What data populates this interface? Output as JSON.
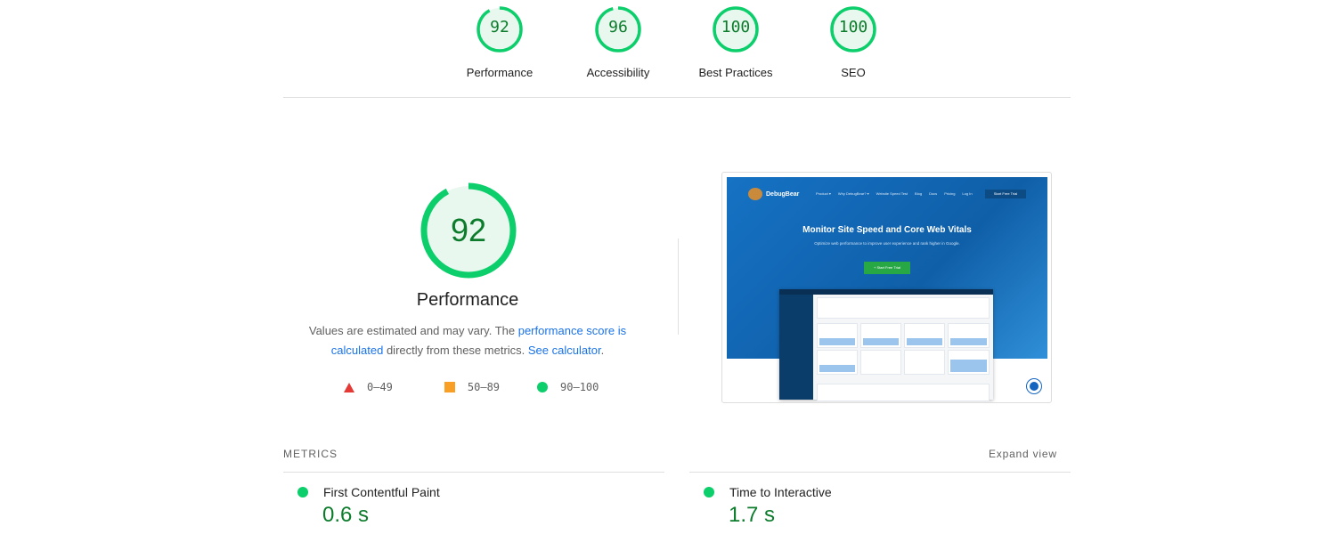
{
  "gauges": [
    {
      "label": "Performance",
      "score": 92
    },
    {
      "label": "Accessibility",
      "score": 96
    },
    {
      "label": "Best Practices",
      "score": 100
    },
    {
      "label": "SEO",
      "score": 100
    }
  ],
  "main": {
    "score": 92,
    "title": "Performance",
    "desc_pre": "Values are estimated and may vary. The ",
    "desc_link1": "performance score is calculated",
    "desc_mid": " directly from these metrics. ",
    "desc_link2": "See calculator",
    "desc_post": ".",
    "legend": [
      {
        "icon": "triangle-icon",
        "range": "0–49",
        "color": "#e53935"
      },
      {
        "icon": "square-icon",
        "range": "50–89",
        "color": "#fa9f25"
      },
      {
        "icon": "circle-icon",
        "range": "90–100",
        "color": "#0cce6b"
      }
    ]
  },
  "screenshot": {
    "brand": "DebugBear",
    "nav": [
      "Product ▾",
      "Why DebugBear? ▾",
      "Website Speed Test",
      "Blog",
      "Docs",
      "Pricing",
      "Log In"
    ],
    "nav_cta": "Start Free Trial",
    "headline": "Monitor Site Speed and Core Web Vitals",
    "subheadline": "Optimize web performance to improve user experience and rank higher in Google.",
    "cta": "+ Start Free Trial"
  },
  "metrics": {
    "heading": "METRICS",
    "expand": "Expand view",
    "items": [
      {
        "name": "First Contentful Paint",
        "value": "0.6 s"
      },
      {
        "name": "Time to Interactive",
        "value": "1.7 s"
      }
    ]
  },
  "colors": {
    "pass": "#0cce6b",
    "pass_text": "#0c7c2c",
    "link": "#1a73e8"
  }
}
